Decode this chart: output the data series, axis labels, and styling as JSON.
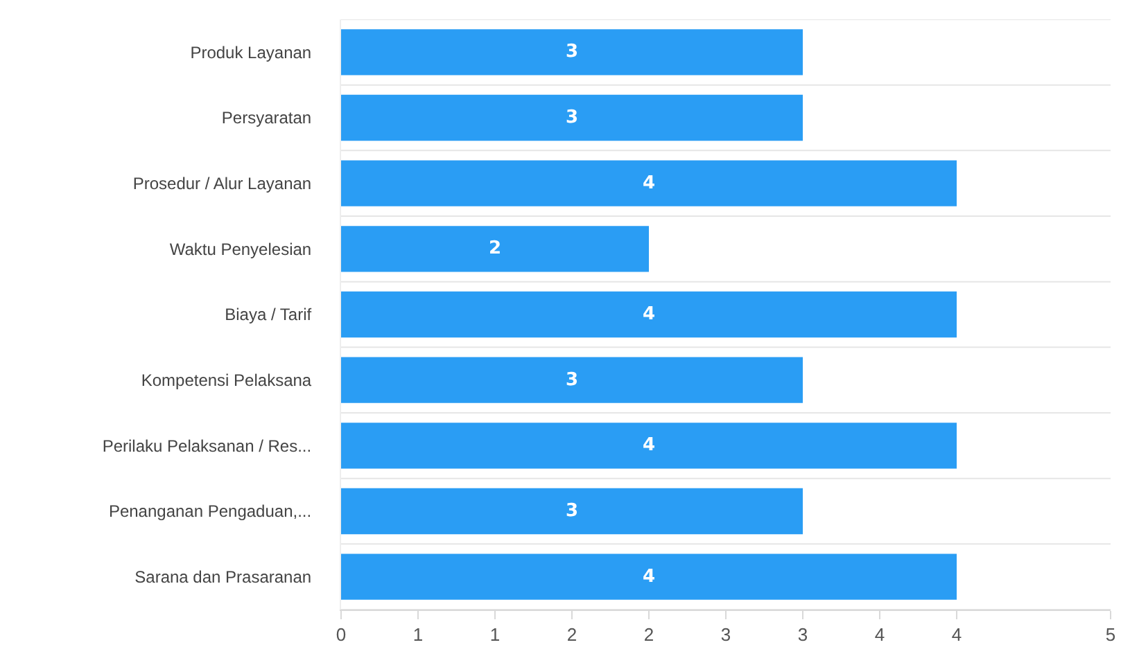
{
  "chart_data": {
    "type": "bar",
    "orientation": "horizontal",
    "categories": [
      "Produk Layanan",
      "Persyaratan",
      "Prosedur / Alur Layanan",
      "Waktu Penyelesian",
      "Biaya / Tarif",
      "Kompetensi Pelaksana",
      "Perilaku Pelaksanan / Res...",
      "Penanganan Pengaduan,...",
      "Sarana dan Prasaranan"
    ],
    "values": [
      3,
      3,
      4,
      2,
      4,
      3,
      4,
      3,
      4
    ],
    "color": "#2a9df4",
    "xlim": [
      0,
      5
    ],
    "xticks": [
      0,
      {
        "value": 0.5,
        "label": "1"
      },
      1,
      {
        "value": 1.5,
        "label": "2"
      },
      2,
      {
        "value": 2.5,
        "label": "3"
      },
      3,
      {
        "value": 3.5,
        "label": "4"
      },
      4,
      5
    ],
    "grid": "y",
    "data_labels": true
  }
}
